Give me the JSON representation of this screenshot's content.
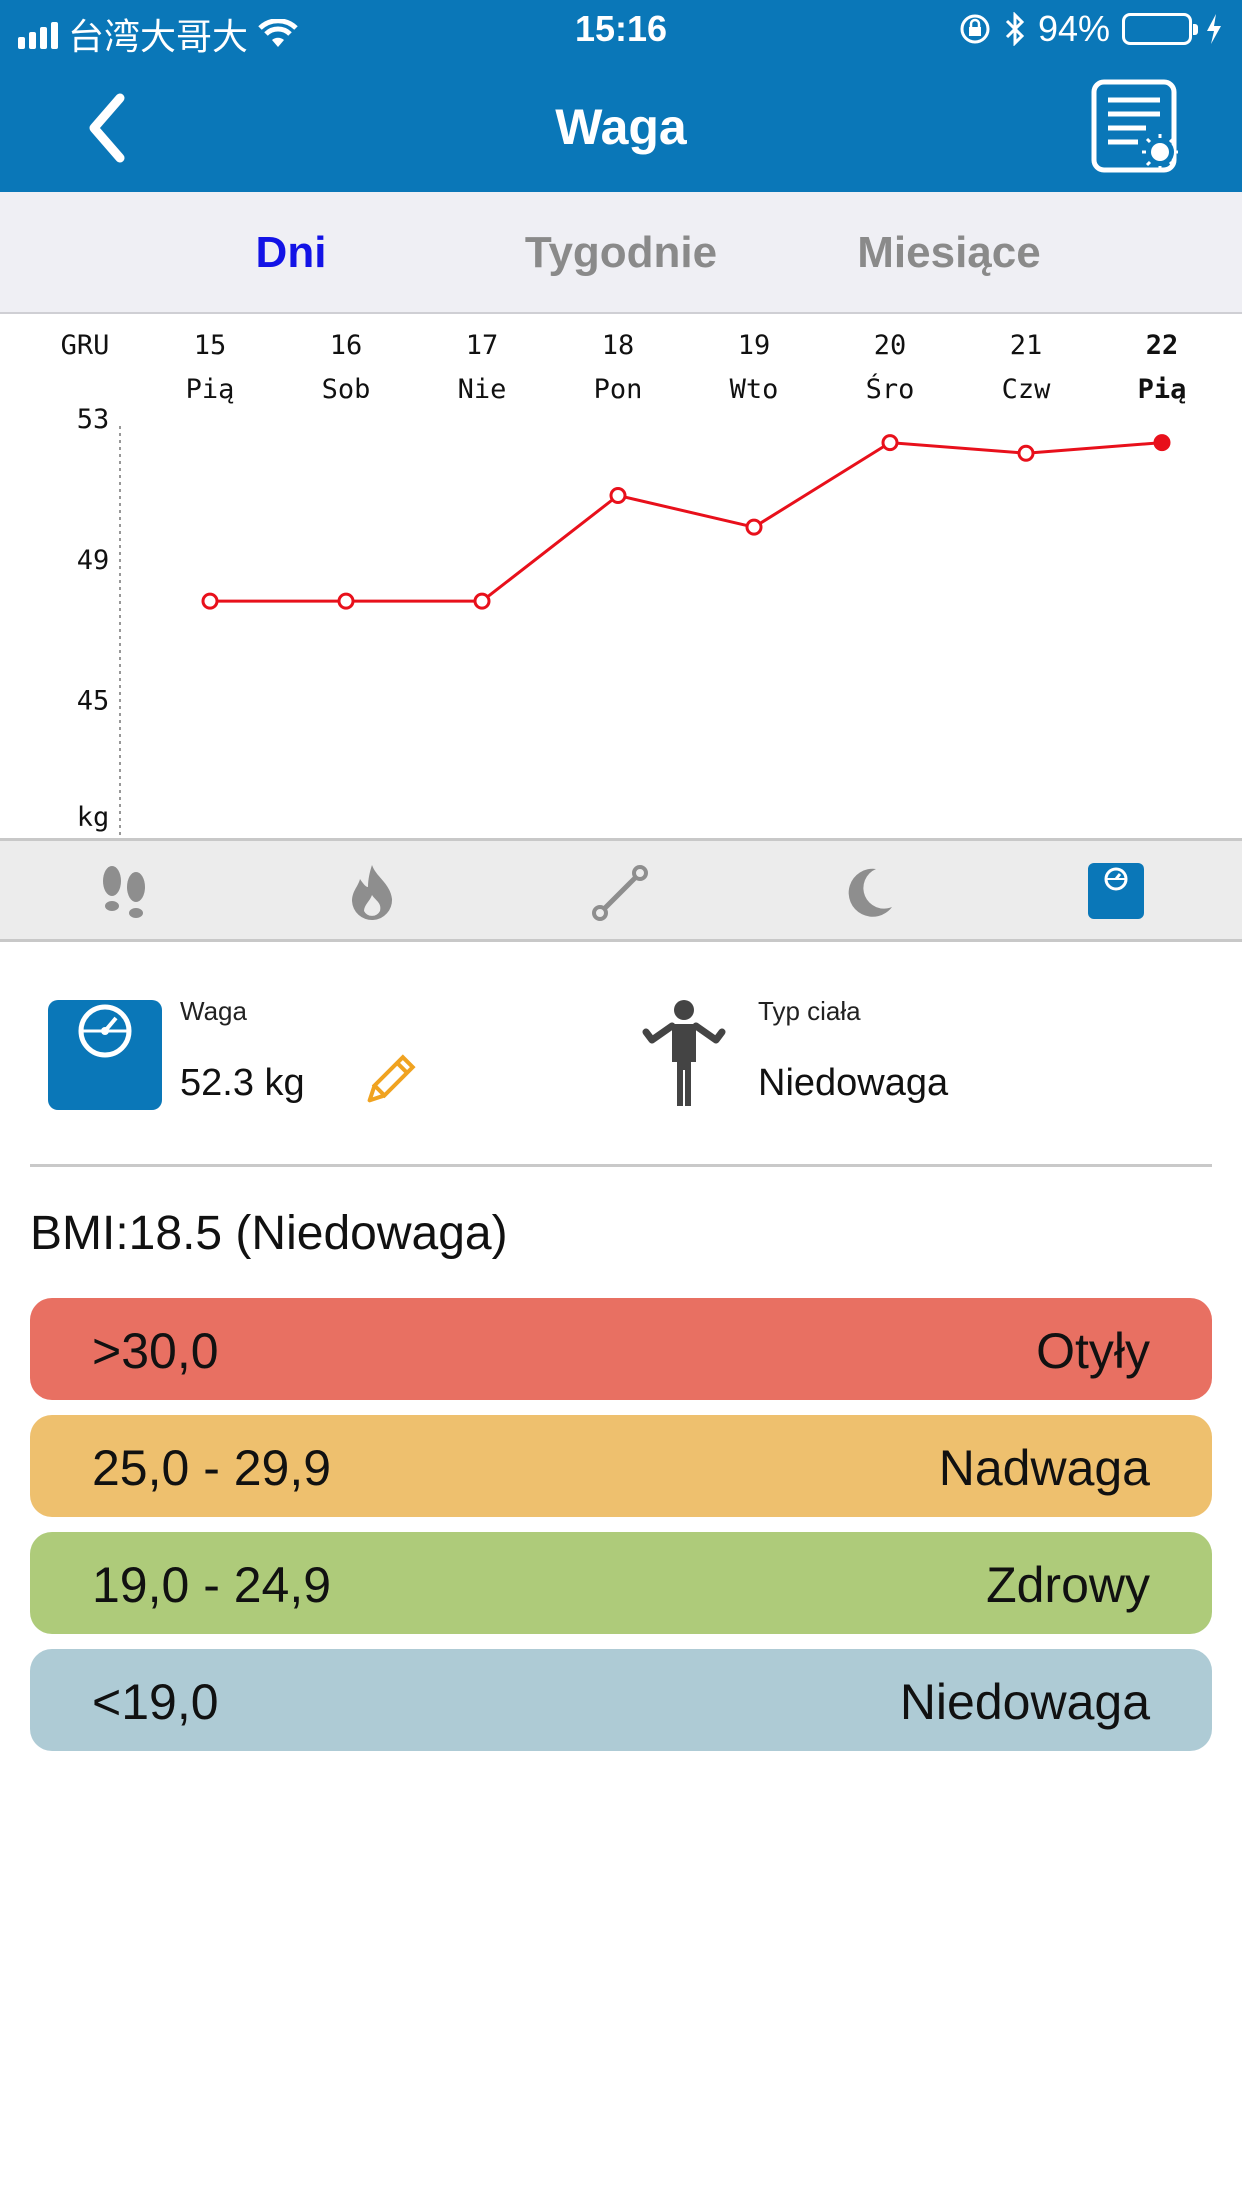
{
  "status_bar": {
    "carrier": "台湾大哥大",
    "time": "15:16",
    "battery": "94%"
  },
  "header": {
    "title": "Waga",
    "back_icon": "chevron-left-icon",
    "report_icon": "report-settings-icon"
  },
  "tabs": [
    {
      "label": "Dni",
      "active": true
    },
    {
      "label": "Tygodnie",
      "active": false
    },
    {
      "label": "Miesiące",
      "active": false
    }
  ],
  "chart_data": {
    "type": "line",
    "month_label": "GRU",
    "categories": [
      {
        "day": "15",
        "weekday": "Pią"
      },
      {
        "day": "16",
        "weekday": "Sob"
      },
      {
        "day": "17",
        "weekday": "Nie"
      },
      {
        "day": "18",
        "weekday": "Pon"
      },
      {
        "day": "19",
        "weekday": "Wto"
      },
      {
        "day": "20",
        "weekday": "Śro"
      },
      {
        "day": "21",
        "weekday": "Czw"
      },
      {
        "day": "22",
        "weekday": "Pią"
      }
    ],
    "values": [
      47.8,
      47.8,
      47.8,
      50.8,
      49.9,
      52.3,
      52.0,
      52.3
    ],
    "highlight_index": 7,
    "y_ticks": [
      53,
      49,
      45
    ],
    "ylabel": "kg",
    "ylim": [
      41.3,
      53
    ],
    "line_color": "#e8101b"
  },
  "metric_bar": {
    "icons": [
      "footsteps-icon",
      "flame-icon",
      "distance-icon",
      "moon-icon",
      "scale-icon"
    ],
    "active_index": 4
  },
  "weight": {
    "label": "Waga",
    "value": "52.3 kg"
  },
  "body_type": {
    "label": "Typ ciała",
    "value": "Niedowaga"
  },
  "bmi_text": "BMI:18.5 (Niedowaga)",
  "bmi_bands": [
    {
      "range": ">30,0",
      "label": "Otyły",
      "color": "#e87062"
    },
    {
      "range": "25,0 - 29,9",
      "label": "Nadwaga",
      "color": "#eec06e"
    },
    {
      "range": "19,0 - 24,9",
      "label": "Zdrowy",
      "color": "#aecb7a"
    },
    {
      "range": "<19,0",
      "label": "Niedowaga",
      "color": "#aecbd5"
    }
  ]
}
